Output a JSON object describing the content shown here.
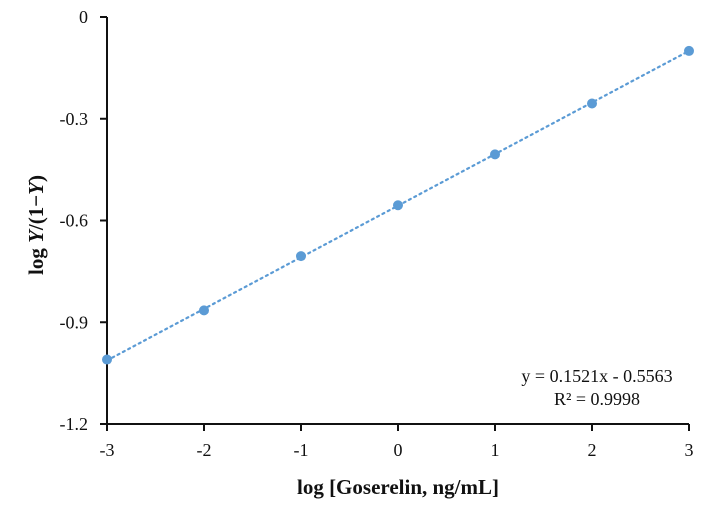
{
  "chart_data": {
    "type": "scatter",
    "title": "",
    "xlabel": "log [Goserelin, ng/mL]",
    "ylabel": "log Y/(1−Y)",
    "xlim": [
      -3,
      3
    ],
    "ylim": [
      -1.2,
      0
    ],
    "x_ticks": [
      "-3",
      "-2",
      "-1",
      "0",
      "1",
      "2",
      "3"
    ],
    "y_ticks": [
      "0",
      "-0.3",
      "-0.6",
      "-0.9",
      "-1.2"
    ],
    "grid": false,
    "legend": null,
    "series": [
      {
        "name": "data",
        "x": [
          -3,
          -2,
          -1,
          0,
          1,
          2,
          3
        ],
        "y": [
          -1.01,
          -0.865,
          -0.705,
          -0.555,
          -0.405,
          -0.255,
          -0.1
        ],
        "color": "#5b9bd5",
        "marker": "circle"
      }
    ],
    "trendline": {
      "type": "linear",
      "slope": 0.1521,
      "intercept": -0.5563,
      "style": "dotted",
      "color": "#5b9bd5"
    },
    "annotations": [
      "y = 0.1521x - 0.5563",
      "R² = 0.9998"
    ]
  },
  "labels": {
    "x_axis_title": "log [Goserelin, ng/mL]",
    "y_axis_prefix": "log ",
    "y_axis_italic1": "Y",
    "y_axis_mid": "/(1−",
    "y_axis_italic2": "Y",
    "y_axis_suffix": ")",
    "equation": "y = 0.1521x - 0.5563",
    "r_squared": "R² = 0.9998"
  }
}
